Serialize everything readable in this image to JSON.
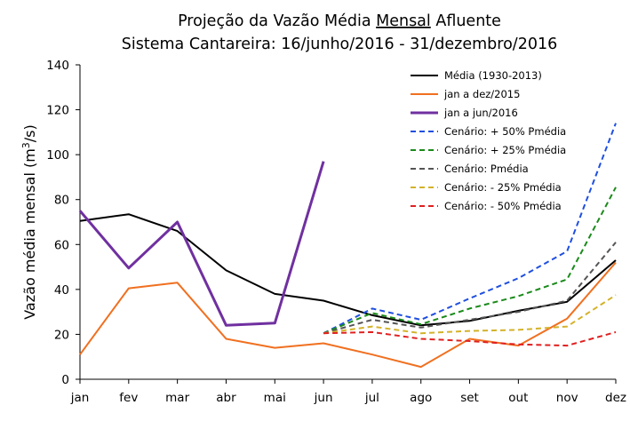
{
  "chart_data": {
    "type": "line",
    "title_line1_pre": "Projeção da Vazão Média ",
    "title_line1_underlined": "Mensal",
    "title_line1_post": " Afluente",
    "title_line2": "Sistema Cantareira: 16/junho/2016 - 31/dezembro/2016",
    "ylabel_pre": "Vazão média mensal (m",
    "ylabel_sup": "3",
    "ylabel_post": "/s)",
    "xlabel": "",
    "categories": [
      "jan",
      "fev",
      "mar",
      "abr",
      "mai",
      "jun",
      "jul",
      "ago",
      "set",
      "out",
      "nov",
      "dez"
    ],
    "ylim": [
      0,
      140
    ],
    "yticks": [
      0,
      20,
      40,
      60,
      80,
      100,
      120,
      140
    ],
    "grid": false,
    "legend_position": "top-right",
    "series": [
      {
        "name": "Média (1930-2013)",
        "color": "#000000",
        "dash": false,
        "width": 2,
        "values": [
          70.5,
          73.5,
          66,
          48.5,
          38,
          35,
          28.5,
          24,
          26,
          30.5,
          34.5,
          53
        ]
      },
      {
        "name": "jan a dez/2015",
        "color": "#f07020",
        "dash": false,
        "width": 2,
        "values": [
          11,
          40.5,
          43,
          18,
          14,
          16,
          11,
          5.5,
          18,
          15,
          27,
          52
        ]
      },
      {
        "name": "jan a jun/2016",
        "color": "#7030a0",
        "dash": false,
        "width": 3,
        "values": [
          75,
          49.5,
          70,
          24,
          25,
          97,
          null,
          null,
          null,
          null,
          null,
          null
        ]
      },
      {
        "name": "Cenário: + 50% Pmédia",
        "color": "#1f4fe0",
        "dash": true,
        "width": 2,
        "values": [
          null,
          null,
          null,
          null,
          null,
          20.5,
          31.5,
          26.5,
          36,
          45,
          57,
          114
        ]
      },
      {
        "name": "Cenário: + 25% Pmédia",
        "color": "#1a8a1a",
        "dash": true,
        "width": 2,
        "values": [
          null,
          null,
          null,
          null,
          null,
          20.5,
          29.5,
          24.5,
          31.5,
          37,
          44.5,
          85.5
        ]
      },
      {
        "name": "Cenário: Pmédia",
        "color": "#555555",
        "dash": true,
        "width": 2,
        "values": [
          null,
          null,
          null,
          null,
          null,
          20.5,
          26.5,
          23,
          26.5,
          30,
          35,
          61
        ]
      },
      {
        "name": "Cenário: - 25% Pmédia",
        "color": "#d4b22a",
        "dash": true,
        "width": 2,
        "values": [
          null,
          null,
          null,
          null,
          null,
          20.5,
          23.5,
          20.5,
          21.5,
          22,
          23.5,
          37.5
        ]
      },
      {
        "name": "Cenário: - 50% Pmédia",
        "color": "#e02020",
        "dash": true,
        "width": 2,
        "values": [
          null,
          null,
          null,
          null,
          null,
          20.5,
          21,
          18,
          17,
          15.5,
          15,
          21
        ]
      }
    ]
  }
}
